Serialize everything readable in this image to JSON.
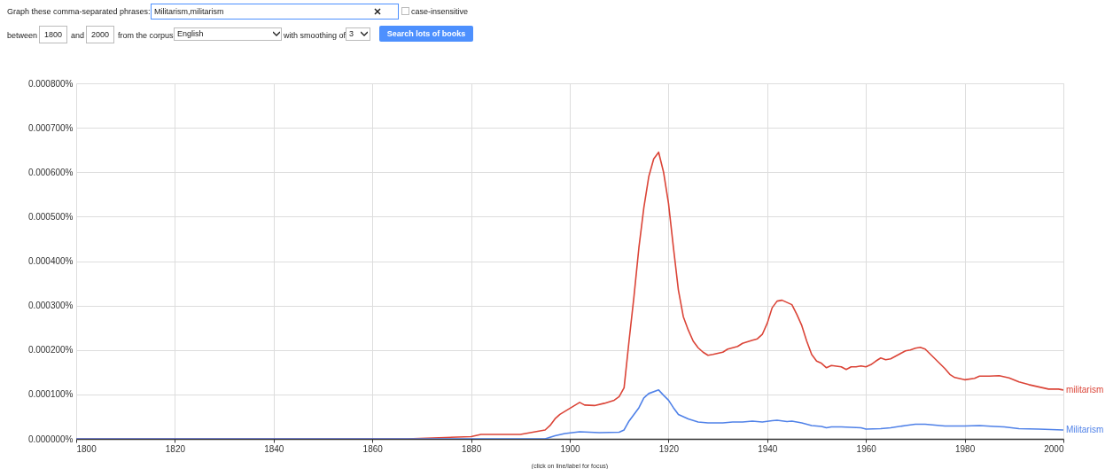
{
  "chart_data": {
    "type": "line",
    "annotations": [
      "Graph these comma-separated phrases:",
      "Militarism,militarism",
      "case-insensitive",
      "between",
      "1800",
      "and",
      "2000",
      "from the corpus",
      "English",
      "with smoothing of",
      "3",
      "Search lots of books",
      "(click on line/label for focus)"
    ],
    "xlim": [
      1800,
      2000
    ],
    "xticks": [
      1800,
      1820,
      1840,
      1860,
      1880,
      1900,
      1920,
      1940,
      1960,
      1980,
      2000
    ],
    "ylim": [
      0,
      0.0008
    ],
    "yticks": [
      {
        "value": 0,
        "label": "0.000000%"
      },
      {
        "value": 0.0001,
        "label": "0.000100%"
      },
      {
        "value": 0.0002,
        "label": "0.000200%"
      },
      {
        "value": 0.0003,
        "label": "0.000300%"
      },
      {
        "value": 0.0004,
        "label": "0.000400%"
      },
      {
        "value": 0.0005,
        "label": "0.000500%"
      },
      {
        "value": 0.0006,
        "label": "0.000600%"
      },
      {
        "value": 0.0007,
        "label": "0.000700%"
      },
      {
        "value": 0.0008,
        "label": "0.000800%"
      }
    ],
    "grid": true,
    "legend": false,
    "series": [
      {
        "name": "militarism",
        "color": "#db4437",
        "x": [
          1800,
          1860,
          1867,
          1880,
          1882,
          1890,
          1895,
          1896,
          1897,
          1898,
          1902,
          1903,
          1905,
          1907,
          1909,
          1910,
          1911,
          1912,
          1913,
          1914,
          1915,
          1916,
          1917,
          1918,
          1919,
          1920,
          1921,
          1922,
          1923,
          1924,
          1925,
          1926,
          1927,
          1928,
          1929,
          1931,
          1932,
          1934,
          1935,
          1937,
          1938,
          1939,
          1940,
          1941,
          1942,
          1943,
          1945,
          1946,
          1947,
          1948,
          1949,
          1950,
          1951,
          1952,
          1953,
          1955,
          1956,
          1957,
          1958,
          1959,
          1960,
          1961,
          1962,
          1963,
          1964,
          1965,
          1967,
          1968,
          1969,
          1970,
          1971,
          1972,
          1974,
          1976,
          1977,
          1978,
          1980,
          1982,
          1983,
          1985,
          1987,
          1989,
          1991,
          1993,
          1995,
          1997,
          1999,
          2000
        ],
        "values": [
          0,
          0,
          0,
          5e-06,
          1e-05,
          1e-05,
          2e-05,
          3e-05,
          4.5e-05,
          5.5e-05,
          8.2e-05,
          7.6e-05,
          7.5e-05,
          8e-05,
          8.7e-05,
          9.5e-05,
          0.000115,
          0.00022,
          0.00032,
          0.00043,
          0.00052,
          0.00059,
          0.00063,
          0.000645,
          0.0006,
          0.00053,
          0.00043,
          0.000335,
          0.000275,
          0.000245,
          0.00022,
          0.000205,
          0.000195,
          0.000188,
          0.00019,
          0.000195,
          0.000202,
          0.000208,
          0.000215,
          0.000222,
          0.000225,
          0.000235,
          0.00026,
          0.000295,
          0.00031,
          0.000312,
          0.000302,
          0.00028,
          0.000255,
          0.00022,
          0.00019,
          0.000175,
          0.00017,
          0.00016,
          0.000165,
          0.000162,
          0.000156,
          0.000162,
          0.000162,
          0.000164,
          0.000162,
          0.000167,
          0.000175,
          0.000182,
          0.000178,
          0.00018,
          0.000192,
          0.000198,
          0.0002,
          0.000204,
          0.000206,
          0.000202,
          0.00018,
          0.000158,
          0.000145,
          0.000138,
          0.000133,
          0.000136,
          0.000141,
          0.000141,
          0.000142,
          0.000137,
          0.000128,
          0.000122,
          0.000117,
          0.000112,
          0.000112,
          0.00011
        ]
      },
      {
        "name": "Militarism",
        "color": "#4f81e8",
        "x": [
          1800,
          1880,
          1895,
          1897,
          1899,
          1902,
          1904,
          1906,
          1910,
          1911,
          1912,
          1914,
          1915,
          1916,
          1918,
          1919,
          1920,
          1921,
          1922,
          1924,
          1926,
          1928,
          1931,
          1933,
          1935,
          1937,
          1939,
          1941,
          1942,
          1944,
          1945,
          1947,
          1949,
          1951,
          1952,
          1953,
          1955,
          1959,
          1960,
          1963,
          1965,
          1968,
          1970,
          1972,
          1976,
          1980,
          1983,
          1986,
          1988,
          1991,
          1995,
          2000
        ],
        "values": [
          0,
          0,
          0,
          7e-06,
          1.2e-05,
          1.6e-05,
          1.5e-05,
          1.4e-05,
          1.5e-05,
          2e-05,
          4e-05,
          7e-05,
          9.2e-05,
          0.000102,
          0.00011,
          9.8e-05,
          8.7e-05,
          7e-05,
          5.5e-05,
          4.5e-05,
          3.8e-05,
          3.6e-05,
          3.6e-05,
          3.8e-05,
          3.8e-05,
          4e-05,
          3.8e-05,
          4.1e-05,
          4.2e-05,
          3.9e-05,
          4e-05,
          3.6e-05,
          3e-05,
          2.8e-05,
          2.5e-05,
          2.7e-05,
          2.7e-05,
          2.5e-05,
          2.2e-05,
          2.3e-05,
          2.5e-05,
          3e-05,
          3.3e-05,
          3.3e-05,
          2.9e-05,
          2.9e-05,
          3e-05,
          2.8e-05,
          2.7e-05,
          2.3e-05,
          2.2e-05,
          2e-05
        ]
      }
    ]
  }
}
